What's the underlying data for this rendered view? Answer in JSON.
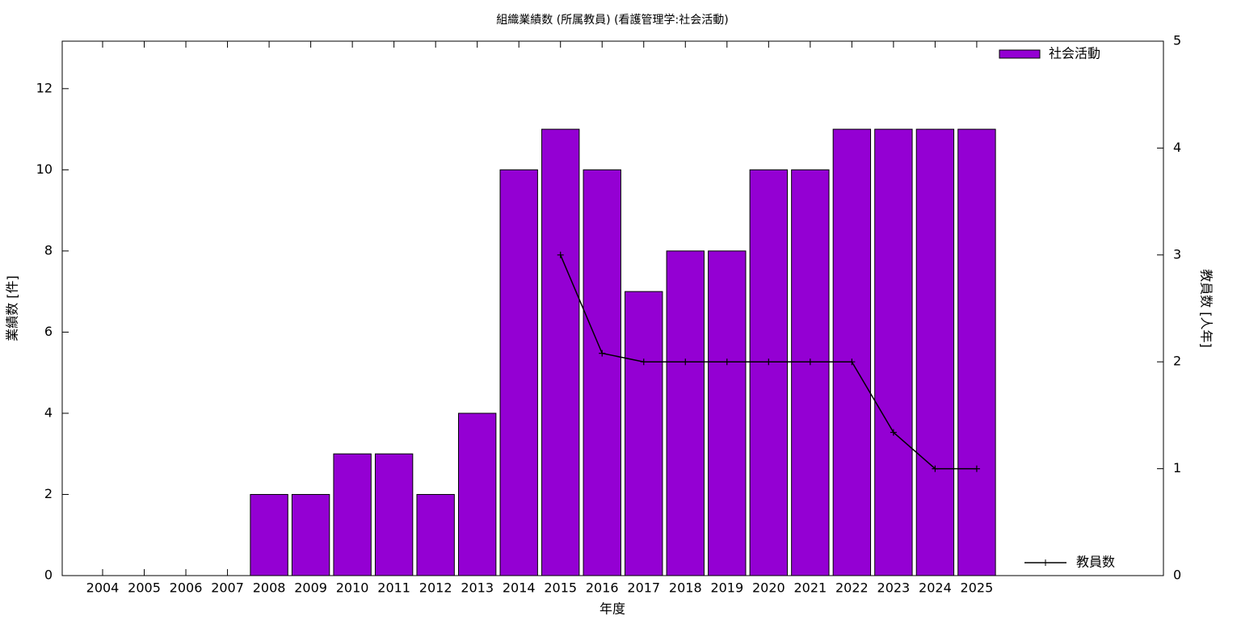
{
  "chart_data": {
    "type": "bar",
    "title": "組織業績数 (所属教員) (看護管理学:社会活動)",
    "xlabel": "年度",
    "ylabel": "業績数 [件]",
    "y2label": "教員数 [人年]",
    "categories": [
      "2004",
      "2005",
      "2006",
      "2007",
      "2008",
      "2009",
      "2010",
      "2011",
      "2012",
      "2013",
      "2014",
      "2015",
      "2016",
      "2017",
      "2018",
      "2019",
      "2020",
      "2021",
      "2022",
      "2023",
      "2024",
      "2025"
    ],
    "series": [
      {
        "name": "社会活動",
        "type": "bar",
        "color": "#9400d3",
        "values": [
          0,
          0,
          0,
          0,
          2,
          2,
          3,
          3,
          2,
          4,
          10,
          11,
          10,
          7,
          8,
          8,
          10,
          10,
          11,
          11,
          11,
          11
        ]
      },
      {
        "name": "教員数",
        "type": "line",
        "axis": "y2",
        "color": "#000000",
        "values": [
          null,
          null,
          null,
          null,
          null,
          null,
          null,
          null,
          null,
          null,
          null,
          3,
          2.08,
          2,
          2,
          2,
          2,
          2,
          2,
          1.34,
          1,
          1
        ]
      }
    ],
    "ylim": [
      0,
      13.17
    ],
    "yticks": [
      0,
      2,
      4,
      6,
      8,
      10,
      12
    ],
    "y2lim": [
      0,
      5
    ],
    "y2ticks": [
      0,
      1,
      2,
      3,
      4,
      5
    ]
  }
}
